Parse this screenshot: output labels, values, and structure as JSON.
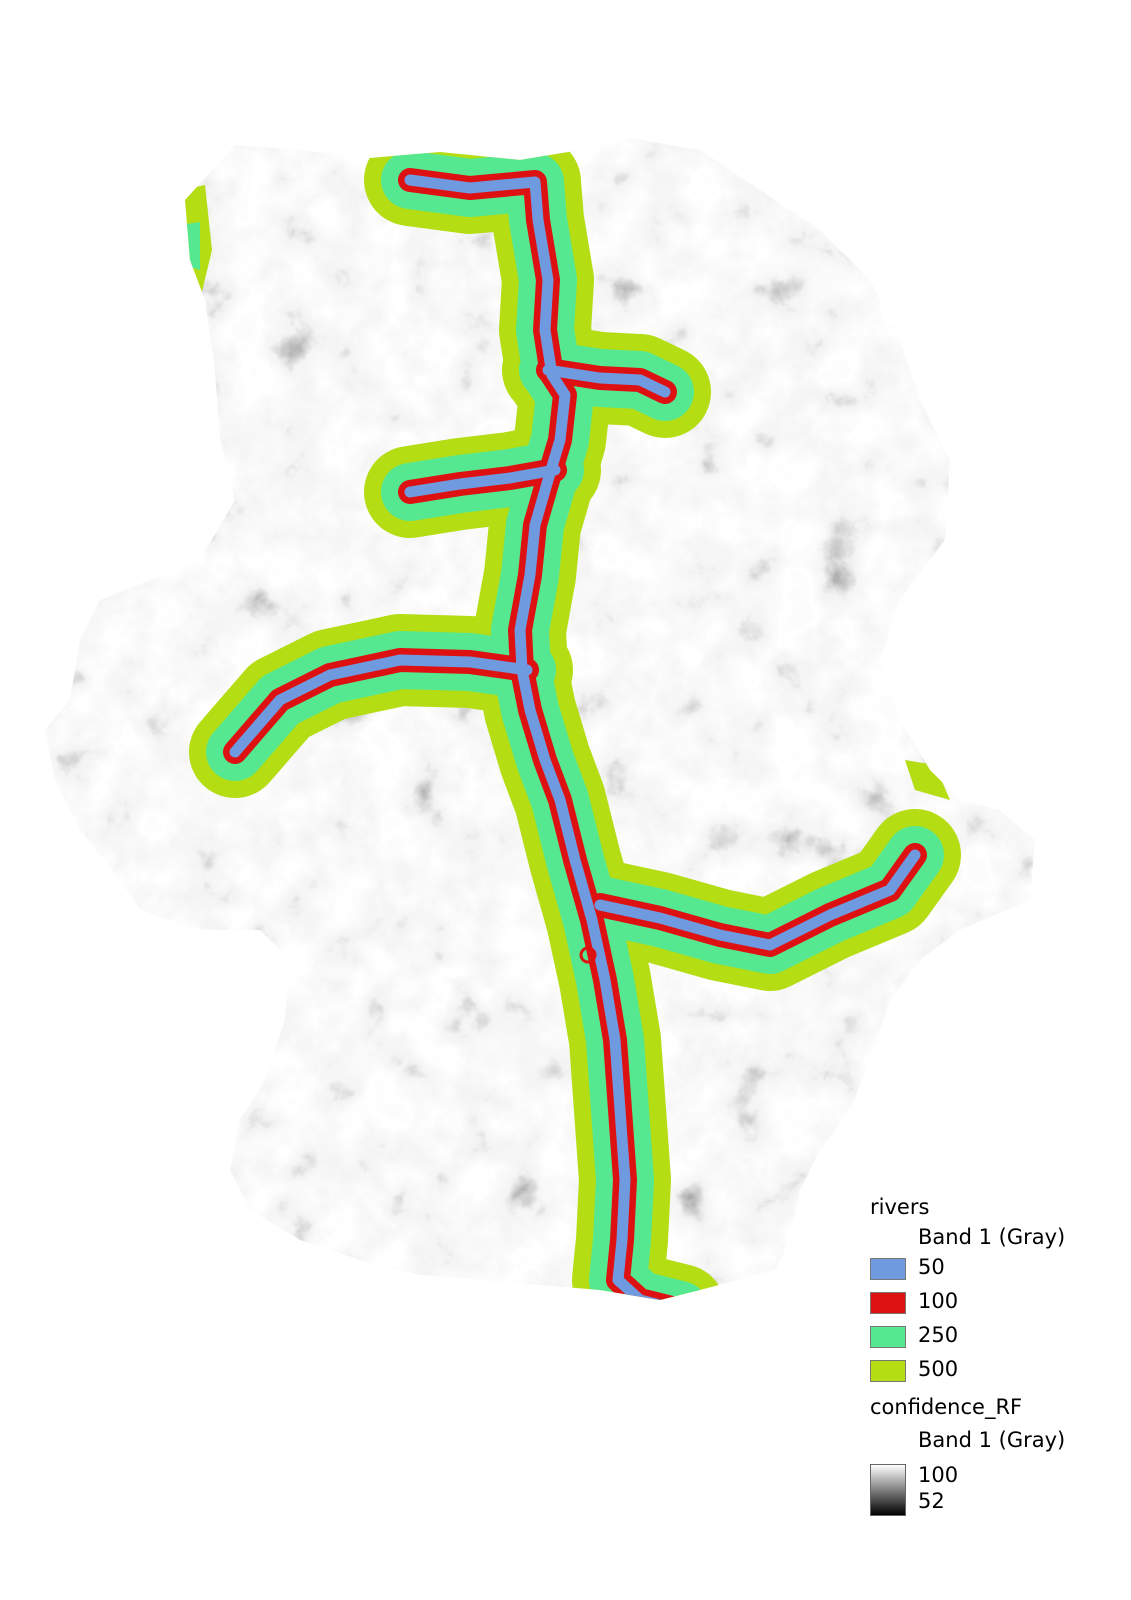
{
  "legend": {
    "rivers": {
      "title": "rivers",
      "band": "Band 1 (Gray)",
      "classes": [
        {
          "label": "50",
          "color": "#6f9ae0"
        },
        {
          "label": "100",
          "color": "#dd1111"
        },
        {
          "label": "250",
          "color": "#55e890"
        },
        {
          "label": "500",
          "color": "#b4dd14"
        }
      ]
    },
    "confidence": {
      "title": "confidence_RF",
      "band": "Band 1 (Gray)",
      "max": "100",
      "min": "52"
    }
  }
}
